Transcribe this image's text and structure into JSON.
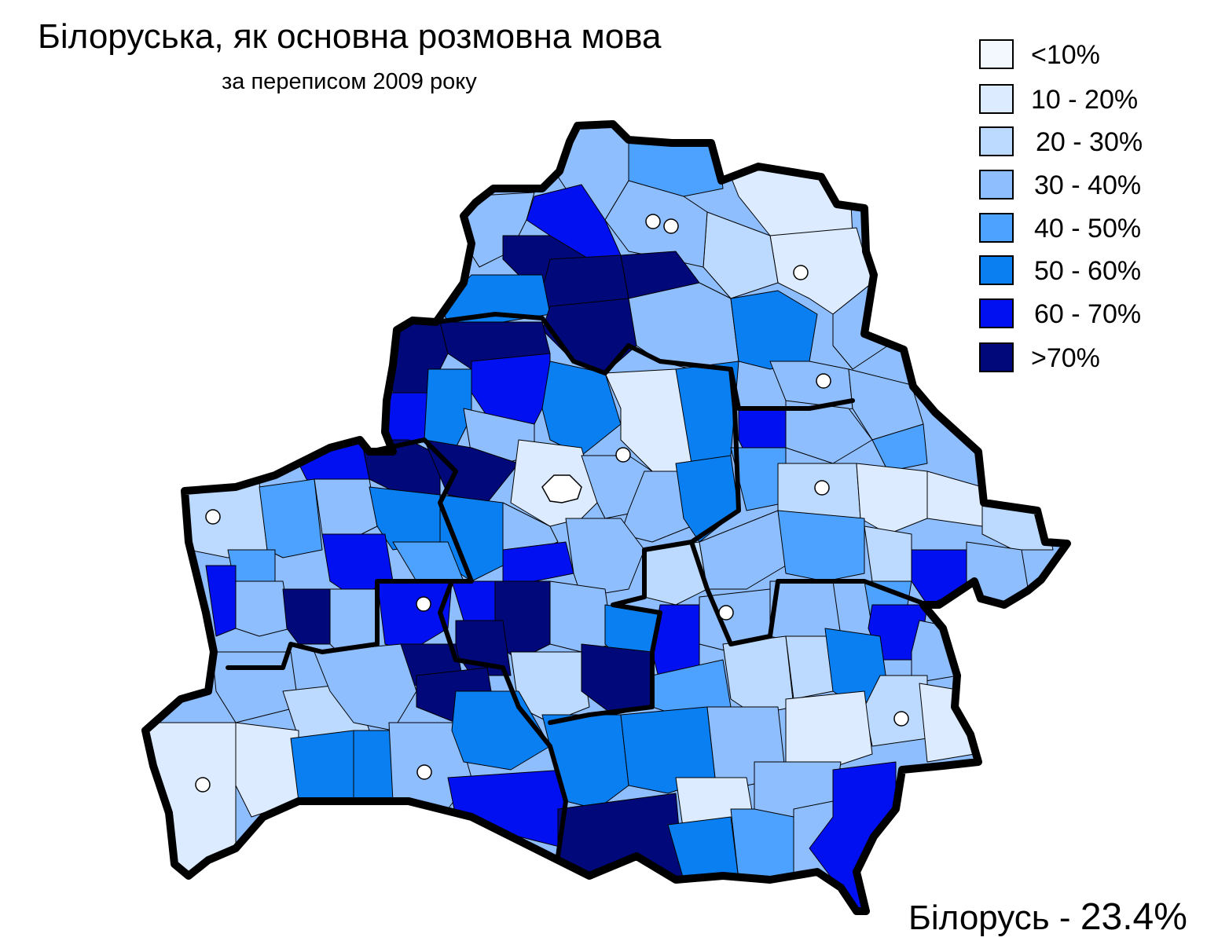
{
  "header": {
    "title": "Білоруська, як основна розмовна мова",
    "subtitle": "за переписом 2009 року"
  },
  "legend": {
    "items": [
      {
        "label": "<10%",
        "color": "#f3f8ff"
      },
      {
        "label": "10 - 20%",
        "color": "#dcebff"
      },
      {
        "label": "20 - 30%",
        "color": "#bcd9ff"
      },
      {
        "label": "30 - 40%",
        "color": "#8fbeff"
      },
      {
        "label": "40 - 50%",
        "color": "#4ea2ff"
      },
      {
        "label": "50 - 60%",
        "color": "#0a7ff2"
      },
      {
        "label": "60 - 70%",
        "color": "#0010f0"
      },
      {
        "label": ">70%",
        "color": "#00087a"
      }
    ]
  },
  "summary": {
    "label": "Білорусь -",
    "value": "23.4%"
  }
}
